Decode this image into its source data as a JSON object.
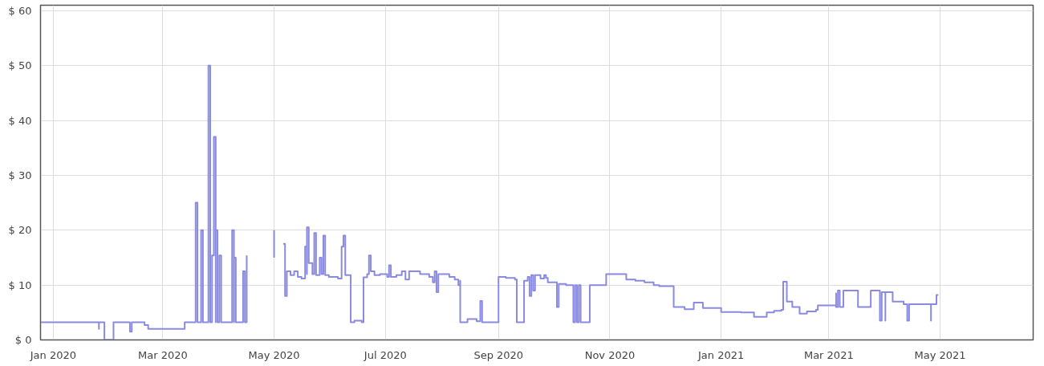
{
  "chart_data": {
    "type": "step",
    "xlim": [
      "2019-12-25",
      "2021-06-21"
    ],
    "ylim": [
      0,
      61
    ],
    "xticks": [
      {
        "value": "2020-01-01",
        "label": "Jan 2020"
      },
      {
        "value": "2020-03-01",
        "label": "Mar 2020"
      },
      {
        "value": "2020-05-01",
        "label": "May 2020"
      },
      {
        "value": "2020-07-01",
        "label": "Jul 2020"
      },
      {
        "value": "2020-09-01",
        "label": "Sep 2020"
      },
      {
        "value": "2020-11-01",
        "label": "Nov 2020"
      },
      {
        "value": "2021-01-01",
        "label": "Jan 2021"
      },
      {
        "value": "2021-03-01",
        "label": "Mar 2021"
      },
      {
        "value": "2021-05-01",
        "label": "May 2021"
      }
    ],
    "yticks": [
      {
        "value": 0,
        "label": "$ 0"
      },
      {
        "value": 10,
        "label": "$ 10"
      },
      {
        "value": 20,
        "label": "$ 20"
      },
      {
        "value": 30,
        "label": "$ 30"
      },
      {
        "value": 40,
        "label": "$ 40"
      },
      {
        "value": 50,
        "label": "$ 50"
      },
      {
        "value": 60,
        "label": "$ 60"
      }
    ],
    "grid": true,
    "marker": "none",
    "line_style": "solid",
    "series": [
      {
        "color": "#8a8ae0",
        "x": [
          "2019-12-25",
          "2020-01-25",
          "2020-01-26",
          "2020-01-26",
          "2020-01-29",
          "2020-01-29",
          "2020-02-03",
          "2020-02-03",
          "2020-02-12",
          "2020-02-13",
          "2020-02-13",
          "2020-02-20",
          "2020-02-20",
          "2020-02-22",
          "2020-03-13",
          "2020-03-13",
          "2020-03-19",
          "2020-03-19",
          "2020-03-20",
          "2020-03-22",
          "2020-03-22",
          "2020-03-23",
          "2020-03-23",
          "2020-03-26",
          "2020-03-26",
          "2020-03-27",
          "2020-03-27",
          "2020-03-28",
          "2020-03-29",
          "2020-03-29",
          "2020-03-30",
          "2020-03-30",
          "2020-03-31",
          "2020-04-01",
          "2020-04-02",
          "2020-04-02",
          "2020-04-08",
          "2020-04-08",
          "2020-04-09",
          "2020-04-09",
          "2020-04-10",
          "2020-04-10",
          "2020-04-14",
          "2020-04-14",
          "2020-04-15",
          "2020-04-16",
          "2020-04-20",
          "2020-05-01",
          "2020-05-01",
          "2020-05-04",
          "2020-05-06",
          "2020-05-07",
          "2020-05-07",
          "2020-05-08",
          "2020-05-10",
          "2020-05-12",
          "2020-05-14",
          "2020-05-16",
          "2020-05-18",
          "2020-05-19",
          "2020-05-19",
          "2020-05-20",
          "2020-05-22",
          "2020-05-23",
          "2020-05-24",
          "2020-05-26",
          "2020-05-27",
          "2020-05-28",
          "2020-05-29",
          "2020-05-31",
          "2020-06-05",
          "2020-06-07",
          "2020-06-08",
          "2020-06-09",
          "2020-06-12",
          "2020-06-12",
          "2020-06-14",
          "2020-06-18",
          "2020-06-18",
          "2020-06-19",
          "2020-06-21",
          "2020-06-22",
          "2020-06-23",
          "2020-06-25",
          "2020-06-28",
          "2020-07-02",
          "2020-07-03",
          "2020-07-04",
          "2020-07-07",
          "2020-07-10",
          "2020-07-12",
          "2020-07-14",
          "2020-07-20",
          "2020-07-25",
          "2020-07-27",
          "2020-07-28",
          "2020-07-29",
          "2020-07-29",
          "2020-07-30",
          "2020-08-05",
          "2020-08-08",
          "2020-08-10",
          "2020-08-11",
          "2020-08-11",
          "2020-08-15",
          "2020-08-20",
          "2020-08-22",
          "2020-08-22",
          "2020-08-23",
          "2020-09-01",
          "2020-09-01",
          "2020-09-05",
          "2020-09-10",
          "2020-09-11",
          "2020-09-11",
          "2020-09-14",
          "2020-09-15",
          "2020-09-17",
          "2020-09-18",
          "2020-09-19",
          "2020-09-20",
          "2020-09-21",
          "2020-09-24",
          "2020-09-26",
          "2020-09-27",
          "2020-09-28",
          "2020-10-03",
          "2020-10-03",
          "2020-10-04",
          "2020-10-08",
          "2020-10-12",
          "2020-10-13",
          "2020-10-14",
          "2020-10-15",
          "2020-10-16",
          "2020-10-20",
          "2020-10-21",
          "2020-10-27",
          "2020-10-30",
          "2020-11-06",
          "2020-11-10",
          "2020-11-15",
          "2020-11-20",
          "2020-11-25",
          "2020-11-28",
          "2020-12-06",
          "2020-12-12",
          "2020-12-17",
          "2020-12-21",
          "2020-12-22",
          "2021-01-01",
          "2021-01-12",
          "2021-01-19",
          "2021-01-25",
          "2021-01-26",
          "2021-01-30",
          "2021-02-03",
          "2021-02-04",
          "2021-02-06",
          "2021-02-09",
          "2021-02-13",
          "2021-02-17",
          "2021-02-22",
          "2021-02-23",
          "2021-03-01",
          "2021-03-05",
          "2021-03-05",
          "2021-03-06",
          "2021-03-07",
          "2021-03-09",
          "2021-03-16",
          "2021-03-17",
          "2021-03-24",
          "2021-03-24",
          "2021-03-29",
          "2021-03-29",
          "2021-03-30",
          "2021-04-01",
          "2021-04-01",
          "2021-04-03",
          "2021-04-05",
          "2021-04-11",
          "2021-04-13",
          "2021-04-14",
          "2021-04-26",
          "2021-04-26",
          "2021-04-29",
          "2021-04-29",
          "2021-04-30"
        ],
        "values": [
          3.2,
          3.2,
          2.0,
          3.2,
          3.2,
          0,
          0,
          3.2,
          1.5,
          1.5,
          3.2,
          3.2,
          2.7,
          2.0,
          2.0,
          3.2,
          3.2,
          25,
          3.2,
          3.2,
          20,
          20,
          3.2,
          3.2,
          50,
          21,
          3.2,
          15.4,
          15.4,
          37,
          3.2,
          20,
          3.2,
          15.4,
          15.4,
          3.2,
          3.2,
          20,
          3.2,
          15,
          15,
          3.2,
          3.2,
          12.5,
          3.2,
          15.4,
          null,
          20,
          15,
          null,
          17.5,
          17.5,
          8,
          12.5,
          11.8,
          12.5,
          11.5,
          11.2,
          17,
          12,
          20.5,
          14,
          12,
          19.5,
          11.8,
          15,
          12,
          19,
          11.8,
          11.5,
          11.2,
          17,
          19,
          11.8,
          11.5,
          3.2,
          3.5,
          3.2,
          3.2,
          11.4,
          12,
          15.4,
          12.5,
          11.8,
          12,
          11.5,
          13.6,
          11.5,
          11.8,
          12.5,
          11,
          12.5,
          12,
          11.5,
          10.5,
          12.5,
          12,
          8.7,
          12,
          11.5,
          11,
          10,
          10.8,
          3.2,
          3.8,
          3.4,
          3.5,
          7.1,
          3.2,
          3.2,
          11.5,
          11.3,
          11,
          11,
          3.2,
          3.2,
          10.8,
          11.5,
          8,
          11.8,
          9,
          11.8,
          11.2,
          11.8,
          11.3,
          10.5,
          10.2,
          6,
          10.2,
          10,
          3.2,
          10,
          3.2,
          10,
          3.2,
          3.2,
          10,
          10,
          12,
          12,
          11,
          10.8,
          10.5,
          10,
          9.8,
          6,
          5.6,
          6.8,
          6.8,
          5.8,
          5.1,
          5.0,
          4.2,
          4.2,
          5.0,
          5.3,
          5.5,
          10.6,
          7,
          6,
          4.8,
          5.2,
          5.5,
          6.3,
          6.3,
          8.5,
          6,
          9,
          6,
          9,
          9,
          6,
          6,
          9,
          8.7,
          3.5,
          8.7,
          3.5,
          8.7,
          8.7,
          7,
          6.5,
          3.5,
          6.5,
          3.5,
          6.5,
          6.5,
          8.2,
          8.2
        ]
      }
    ]
  }
}
